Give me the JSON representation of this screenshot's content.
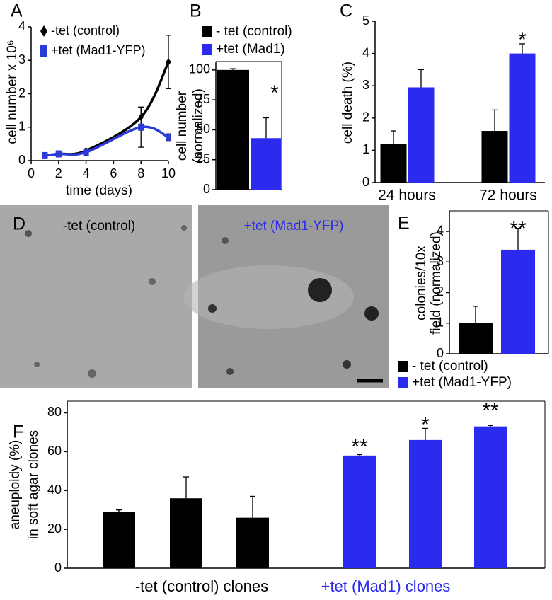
{
  "chart_data": [
    {
      "type": "line",
      "panel_label": "A",
      "xlabel": "time (days)",
      "ylabel": "cell number x 10⁶",
      "x": [
        1,
        2,
        4,
        8,
        10
      ],
      "xlim": [
        0,
        10
      ],
      "xticks": [
        0,
        2,
        4,
        6,
        8,
        10
      ],
      "ylim": [
        0,
        4
      ],
      "yticks": [
        0,
        1,
        2,
        3,
        4
      ],
      "series": [
        {
          "name": "-tet (control)",
          "color": "#000000",
          "marker": "diamond",
          "values": [
            0.15,
            0.2,
            0.3,
            1.3,
            2.95
          ],
          "errors": [
            0.05,
            0.05,
            0.05,
            0.3,
            0.8
          ]
        },
        {
          "name": "+tet (Mad1-YFP)",
          "color": "#2b3bd6",
          "marker": "square",
          "values": [
            0.15,
            0.2,
            0.25,
            1.0,
            0.7
          ],
          "errors": [
            0.05,
            0.05,
            0.1,
            0.6,
            0.1
          ]
        }
      ]
    },
    {
      "type": "bar",
      "panel_label": "B",
      "ylabel": [
        "cell number",
        "(normalized)"
      ],
      "ylim": [
        0,
        107
      ],
      "yticks": [
        0,
        25,
        50,
        75,
        100
      ],
      "annotations": [
        "*"
      ],
      "series": [
        {
          "name": "- tet (control)",
          "color": "#000000",
          "values": [
            100
          ],
          "errors": [
            1
          ]
        },
        {
          "name": "+tet (Mad1)",
          "color": "#2b2bf0",
          "values": [
            43
          ],
          "errors": [
            17
          ]
        }
      ]
    },
    {
      "type": "bar",
      "panel_label": "C",
      "ylabel": "cell death (%)",
      "categories": [
        "24 hours",
        "72 hours"
      ],
      "ylim": [
        0,
        5
      ],
      "yticks": [
        0,
        1,
        2,
        3,
        4,
        5
      ],
      "annotations": [
        "*"
      ],
      "series": [
        {
          "color": "#000000",
          "values": [
            1.2,
            1.6
          ],
          "errors": [
            0.4,
            0.65
          ]
        },
        {
          "color": "#2b2bf0",
          "values": [
            2.95,
            4.0
          ],
          "errors": [
            0.55,
            0.3
          ]
        }
      ]
    },
    {
      "type": "bar",
      "panel_label": "E",
      "ylabel": [
        "colonies/10x",
        "field (normalized)"
      ],
      "ylim": [
        0,
        4.67
      ],
      "yticks": [
        0,
        1,
        2,
        3,
        4
      ],
      "annotations": [
        "**"
      ],
      "series": [
        {
          "name": "- tet (control)",
          "color": "#000000",
          "values": [
            1
          ],
          "errors": [
            0.55
          ]
        },
        {
          "name": "+tet (Mad1-YFP)",
          "color": "#2b2bf0",
          "values": [
            3.4
          ],
          "errors": [
            0.7
          ]
        }
      ]
    },
    {
      "type": "bar",
      "panel_label": "F",
      "ylabel": [
        "aneuploidy (%)",
        "in soft agar clones"
      ],
      "ylim": [
        0,
        86
      ],
      "yticks": [
        0,
        20,
        40,
        60,
        80
      ],
      "annotations": [
        "**",
        "*",
        "**"
      ],
      "series": [
        {
          "name": "-tet (control) clones",
          "color": "#000000",
          "values": [
            29,
            36,
            26
          ],
          "errors": [
            1,
            11,
            11
          ]
        },
        {
          "name": "+tet (Mad1) clones",
          "color": "#2b2bf0",
          "values": [
            58,
            66,
            73
          ],
          "errors": [
            0.5,
            6,
            0.5
          ]
        }
      ]
    }
  ],
  "images": {
    "panel_label": "D",
    "captions": [
      "-tet (control)",
      "+tet (Mad1-YFP)"
    ]
  }
}
